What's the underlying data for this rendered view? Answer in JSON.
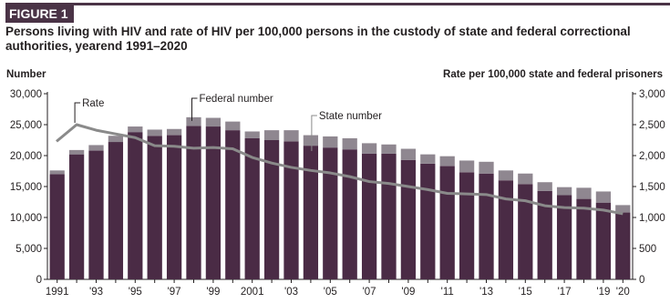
{
  "figure_label": "FIGURE 1",
  "title": "Persons living with HIV and rate of HIV per 100,000 persons in the custody of state and federal correctional authorities, yearend 1991–2020",
  "chart_data": {
    "type": "bar",
    "stacked": true,
    "left_axis_label": "Number",
    "right_axis_label": "Rate per 100,000 state and federal prisoners",
    "categories": [
      "1991",
      "1992",
      "1993",
      "1994",
      "1995",
      "1996",
      "1997",
      "1998",
      "1999",
      "2000",
      "2001",
      "2002",
      "2003",
      "2004",
      "2005",
      "2006",
      "2007",
      "2008",
      "2009",
      "2010",
      "2011",
      "2012",
      "2013",
      "2014",
      "2015",
      "2016",
      "2017",
      "2018",
      "2019",
      "2020"
    ],
    "x_tick_labels": [
      "1991",
      "",
      "'93",
      "",
      "'95",
      "",
      "'97",
      "",
      "'99",
      "",
      "2001",
      "",
      "'03",
      "",
      "'05",
      "",
      "'07",
      "",
      "'09",
      "",
      "'11",
      "",
      "'13",
      "",
      "'15",
      "",
      "'17",
      "",
      "'19",
      "'20"
    ],
    "series": [
      {
        "name": "State number",
        "role": "bar-bottom",
        "color": "#4a2b45",
        "values": [
          17000,
          20200,
          20800,
          22200,
          23800,
          23200,
          23300,
          24800,
          24700,
          24100,
          22800,
          22500,
          22300,
          21600,
          21300,
          21000,
          20300,
          20300,
          19300,
          18700,
          18300,
          17300,
          17100,
          16000,
          15400,
          14300,
          13600,
          13000,
          12400,
          10800
        ]
      },
      {
        "name": "Federal number",
        "role": "bar-top",
        "color": "#8f8790",
        "values": [
          600,
          700,
          900,
          1000,
          900,
          1000,
          1000,
          1400,
          1400,
          1400,
          1100,
          1600,
          1800,
          1700,
          1800,
          1800,
          1700,
          1500,
          1800,
          1500,
          1600,
          1900,
          1900,
          1600,
          1700,
          1400,
          1300,
          1800,
          1800,
          1200
        ]
      },
      {
        "name": "Rate",
        "role": "line",
        "axis": "right",
        "color": "#8a8a8a",
        "values": [
          2230,
          2500,
          2410,
          2350,
          2290,
          2160,
          2150,
          2120,
          2130,
          2110,
          1970,
          1880,
          1810,
          1760,
          1720,
          1660,
          1580,
          1550,
          1500,
          1450,
          1390,
          1380,
          1370,
          1300,
          1270,
          1190,
          1160,
          1150,
          1120,
          1060
        ]
      }
    ],
    "ylim_left": [
      0,
      30000
    ],
    "yticks_left": [
      "0",
      "5,000",
      "10,000",
      "15,000",
      "20,000",
      "25,000",
      "30,000"
    ],
    "ylim_right": [
      0,
      3000
    ],
    "yticks_right": [
      "0",
      "500",
      "1,000",
      "1,500",
      "2,000",
      "2,500",
      "3,000"
    ],
    "annotations": [
      "Rate",
      "Federal number",
      "State number"
    ],
    "grid": false
  }
}
